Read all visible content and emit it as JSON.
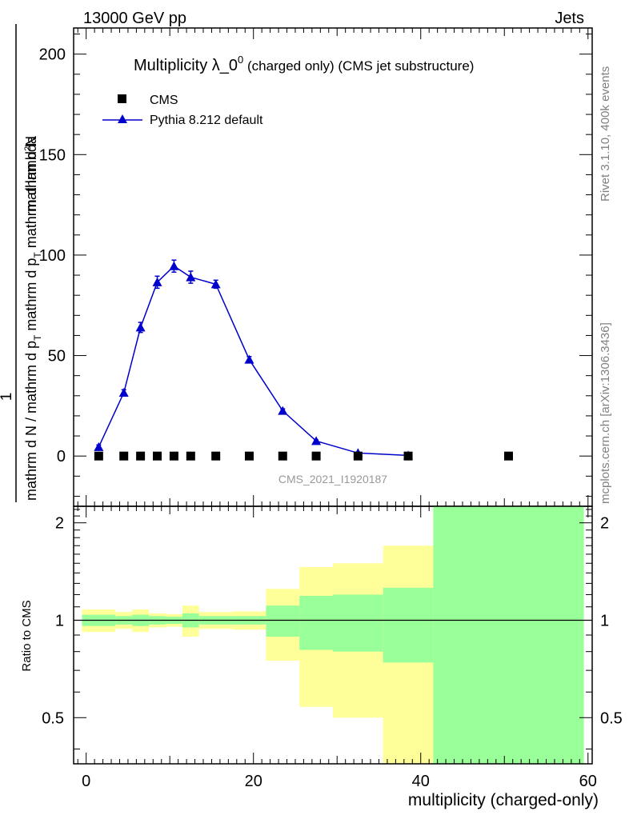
{
  "header": {
    "left": "13000 GeV pp",
    "right": "Jets"
  },
  "side_labels": {
    "rivet": "Rivet 3.1.10,  400k events",
    "mcplots": "mcplots.cern.ch [arXiv:1306.3436]"
  },
  "watermark": "CMS_2021_I1920187",
  "chart_data": {
    "type": "scatter",
    "title_main": "Multiplicity λ_0",
    "title_sup": "0",
    "title_sub": " (charged only) (CMS jet substructure)",
    "ylabel_num": "1",
    "ylabel_den": "mathrm d N / mathrm d p",
    "ylabel_t1": "T",
    "ylabel_den2": " mathrm d p",
    "ylabel_t2": "T",
    "ylabel_den3": " mathrm d lambda",
    "ylabel_top": "mathrm d",
    "ylabel_sup2": "2",
    "ylabel_top2": "N",
    "xlabel": "multiplicity (charged-only)",
    "ratio_ylabel": "Ratio to CMS",
    "xlim": [
      -1.5,
      60.5
    ],
    "ylim": [
      -25,
      213
    ],
    "ratio_ylim": [
      0.36,
      2.25
    ],
    "x_ticks": [
      0,
      20,
      40,
      60
    ],
    "y_ticks": [
      0,
      50,
      100,
      150,
      200
    ],
    "ratio_ticks": [
      0.5,
      1,
      2
    ],
    "legend": [
      {
        "name": "CMS",
        "marker": "square",
        "color": "#000000"
      },
      {
        "name": "Pythia 8.212 default",
        "marker": "triangle",
        "color": "#0000cc"
      }
    ],
    "series": [
      {
        "name": "CMS",
        "x": [
          1.5,
          4.5,
          6.5,
          8.5,
          10.5,
          12.5,
          15.5,
          19.5,
          23.5,
          27.5,
          32.5,
          38.5,
          50.5
        ],
        "y": [
          0,
          0,
          0,
          0,
          0,
          0,
          0,
          0,
          0,
          0,
          0,
          0,
          0
        ]
      },
      {
        "name": "Pythia 8.212 default",
        "x": [
          1.5,
          4.5,
          6.5,
          8.5,
          10.5,
          12.5,
          15.5,
          19.5,
          23.5,
          27.5,
          32.5,
          38.5
        ],
        "y": [
          4.5,
          31.5,
          64,
          86.5,
          94.5,
          89,
          85.5,
          48,
          22.5,
          7.5,
          1.5,
          0.3
        ],
        "err": [
          1,
          1.5,
          2.5,
          3,
          3,
          3,
          2,
          1.5,
          1,
          0.5,
          0.3,
          0.2
        ]
      }
    ],
    "ratio_bands": [
      {
        "x0": -0.5,
        "x1": 3.5,
        "inner": [
          0.96,
          1.04
        ],
        "outer": [
          0.92,
          1.08
        ]
      },
      {
        "x0": 3.5,
        "x1": 5.5,
        "inner": [
          0.97,
          1.03
        ],
        "outer": [
          0.94,
          1.06
        ]
      },
      {
        "x0": 5.5,
        "x1": 7.5,
        "inner": [
          0.96,
          1.04
        ],
        "outer": [
          0.92,
          1.08
        ]
      },
      {
        "x0": 7.5,
        "x1": 9.5,
        "inner": [
          0.97,
          1.03
        ],
        "outer": [
          0.95,
          1.05
        ]
      },
      {
        "x0": 9.5,
        "x1": 11.5,
        "inner": [
          0.975,
          1.025
        ],
        "outer": [
          0.955,
          1.045
        ]
      },
      {
        "x0": 11.5,
        "x1": 13.5,
        "inner": [
          0.95,
          1.05
        ],
        "outer": [
          0.89,
          1.11
        ]
      },
      {
        "x0": 13.5,
        "x1": 17.5,
        "inner": [
          0.97,
          1.03
        ],
        "outer": [
          0.94,
          1.06
        ]
      },
      {
        "x0": 17.5,
        "x1": 21.5,
        "inner": [
          0.97,
          1.03
        ],
        "outer": [
          0.935,
          1.065
        ]
      },
      {
        "x0": 21.5,
        "x1": 25.5,
        "inner": [
          0.89,
          1.11
        ],
        "outer": [
          0.75,
          1.25
        ]
      },
      {
        "x0": 25.5,
        "x1": 29.5,
        "inner": [
          0.81,
          1.19
        ],
        "outer": [
          0.54,
          1.46
        ]
      },
      {
        "x0": 29.5,
        "x1": 35.5,
        "inner": [
          0.8,
          1.2
        ],
        "outer": [
          0.5,
          1.5
        ]
      },
      {
        "x0": 35.5,
        "x1": 41.5,
        "inner": [
          0.74,
          1.26
        ],
        "outer": [
          0.3,
          1.7
        ]
      },
      {
        "x0": 41.5,
        "x1": 59.5,
        "inner": [
          0.3,
          3.0
        ],
        "outer": [
          0.3,
          3.0
        ]
      }
    ],
    "colors": {
      "inner": "#99ff99",
      "outer": "#ffff99",
      "mc": "#0000cc",
      "data": "#000000",
      "watermark": "#999999"
    }
  }
}
